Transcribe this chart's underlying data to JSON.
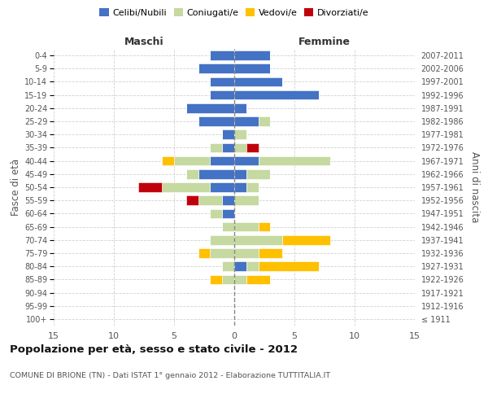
{
  "age_groups": [
    "100+",
    "95-99",
    "90-94",
    "85-89",
    "80-84",
    "75-79",
    "70-74",
    "65-69",
    "60-64",
    "55-59",
    "50-54",
    "45-49",
    "40-44",
    "35-39",
    "30-34",
    "25-29",
    "20-24",
    "15-19",
    "10-14",
    "5-9",
    "0-4"
  ],
  "birth_years": [
    "≤ 1911",
    "1912-1916",
    "1917-1921",
    "1922-1926",
    "1927-1931",
    "1932-1936",
    "1937-1941",
    "1942-1946",
    "1947-1951",
    "1952-1956",
    "1957-1961",
    "1962-1966",
    "1967-1971",
    "1972-1976",
    "1977-1981",
    "1982-1986",
    "1987-1991",
    "1992-1996",
    "1997-2001",
    "2002-2006",
    "2007-2011"
  ],
  "male_celibi": [
    0,
    0,
    0,
    0,
    0,
    0,
    0,
    0,
    1,
    1,
    2,
    3,
    2,
    1,
    1,
    3,
    4,
    2,
    2,
    3,
    2
  ],
  "male_coniugati": [
    0,
    0,
    0,
    1,
    1,
    2,
    2,
    1,
    1,
    2,
    4,
    1,
    3,
    1,
    0,
    0,
    0,
    0,
    0,
    0,
    0
  ],
  "male_vedovi": [
    0,
    0,
    0,
    1,
    0,
    1,
    0,
    0,
    0,
    0,
    0,
    0,
    1,
    0,
    0,
    0,
    0,
    0,
    0,
    0,
    0
  ],
  "male_divorziati": [
    0,
    0,
    0,
    0,
    0,
    0,
    0,
    0,
    0,
    1,
    2,
    0,
    0,
    0,
    0,
    0,
    0,
    0,
    0,
    0,
    0
  ],
  "fem_nubili": [
    0,
    0,
    0,
    0,
    1,
    0,
    0,
    0,
    0,
    0,
    1,
    1,
    2,
    0,
    0,
    2,
    1,
    7,
    4,
    3,
    3
  ],
  "fem_coniugate": [
    0,
    0,
    0,
    1,
    1,
    2,
    4,
    2,
    0,
    2,
    1,
    2,
    6,
    1,
    1,
    1,
    0,
    0,
    0,
    0,
    0
  ],
  "fem_vedove": [
    0,
    0,
    0,
    2,
    5,
    2,
    4,
    1,
    0,
    0,
    0,
    0,
    0,
    0,
    0,
    0,
    0,
    0,
    0,
    0,
    0
  ],
  "fem_divorziate": [
    0,
    0,
    0,
    0,
    0,
    0,
    0,
    0,
    0,
    0,
    0,
    0,
    0,
    1,
    0,
    0,
    0,
    0,
    0,
    0,
    0
  ],
  "color_cn": "#4472c4",
  "color_co": "#c5d9a0",
  "color_ve": "#ffc000",
  "color_di": "#c0000b",
  "xlim": 15,
  "bar_height": 0.72,
  "title": "Popolazione per età, sesso e stato civile - 2012",
  "subtitle": "COMUNE DI BRIONE (TN) - Dati ISTAT 1° gennaio 2012 - Elaborazione TUTTITALIA.IT",
  "label_maschi": "Maschi",
  "label_femmine": "Femmine",
  "ylabel_left": "Fasce di età",
  "ylabel_right": "Anni di nascita",
  "legend_labels": [
    "Celibi/Nubili",
    "Coniugati/e",
    "Vedovi/e",
    "Divorziati/e"
  ],
  "bg_color": "#ffffff",
  "grid_color": "#cccccc"
}
